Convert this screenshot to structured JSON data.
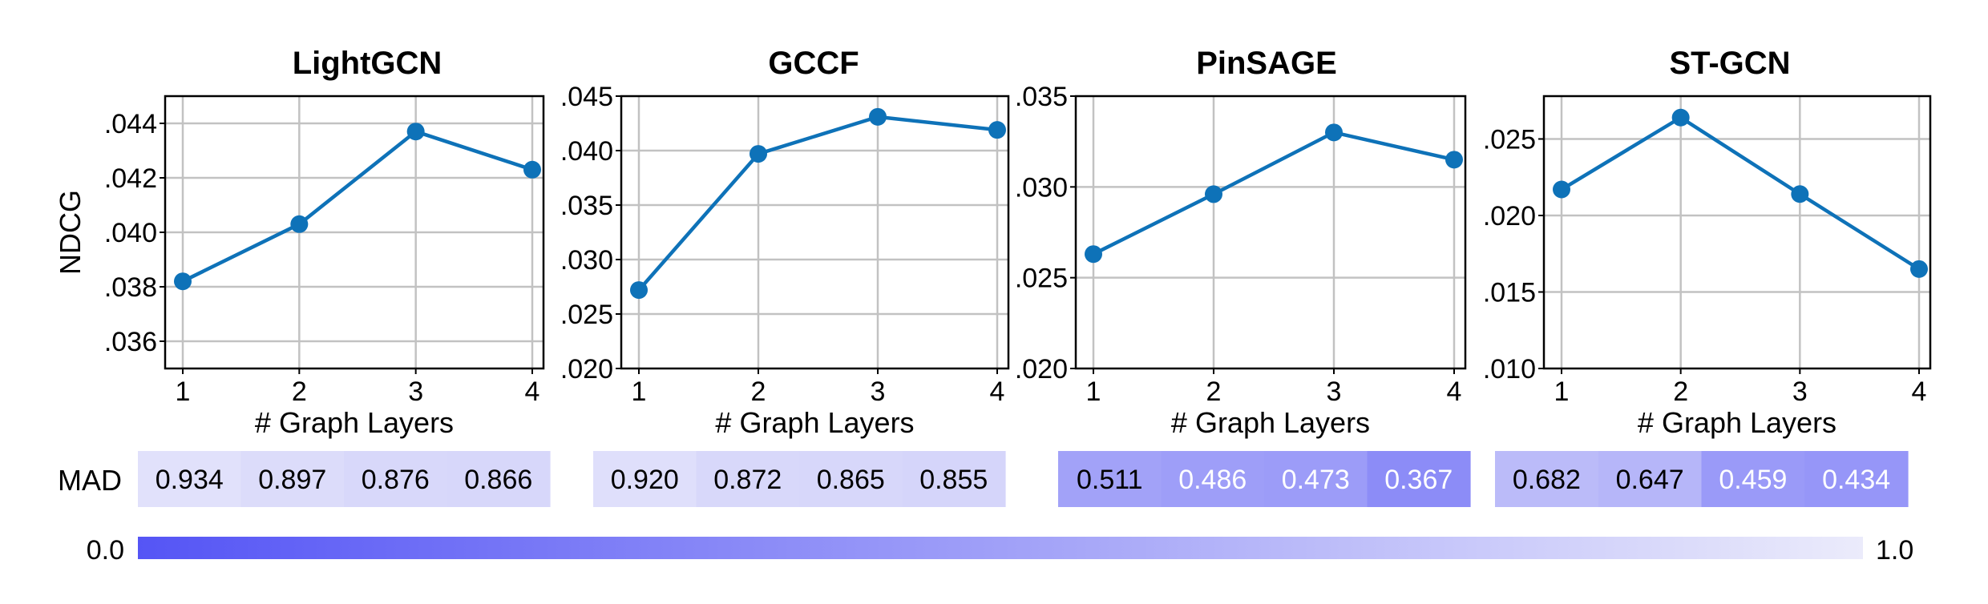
{
  "chart_data": [
    {
      "type": "line",
      "title": "LightGCN",
      "xlabel": "# Graph Layers",
      "ylabel": "NDCG",
      "x": [
        1,
        2,
        3,
        4
      ],
      "x_ticks": [
        "1",
        "2",
        "3",
        "4"
      ],
      "series": [
        {
          "values": [
            0.0382,
            0.0403,
            0.0437,
            0.0423
          ]
        }
      ],
      "ylim": [
        0.035,
        0.045
      ],
      "y_ticks": [
        0.036,
        0.038,
        0.04,
        0.042,
        0.044
      ],
      "y_tick_labels": [
        ".036",
        ".038",
        ".040",
        ".042",
        ".044"
      ],
      "grid": true,
      "mad": {
        "label": "MAD",
        "values": [
          0.934,
          0.897,
          0.876,
          0.866
        ],
        "labels": [
          "0.934",
          "0.897",
          "0.876",
          "0.866"
        ]
      }
    },
    {
      "type": "line",
      "title": "GCCF",
      "xlabel": "# Graph Layers",
      "ylabel": "",
      "x": [
        1,
        2,
        3,
        4
      ],
      "x_ticks": [
        "1",
        "2",
        "3",
        "4"
      ],
      "series": [
        {
          "values": [
            0.0272,
            0.0397,
            0.0431,
            0.0419
          ]
        }
      ],
      "ylim": [
        0.02,
        0.045
      ],
      "y_ticks": [
        0.02,
        0.025,
        0.03,
        0.035,
        0.04,
        0.045
      ],
      "y_tick_labels": [
        ".020",
        ".025",
        ".030",
        ".035",
        ".040",
        ".045"
      ],
      "grid": true,
      "mad": {
        "values": [
          0.92,
          0.872,
          0.865,
          0.855
        ],
        "labels": [
          "0.920",
          "0.872",
          "0.865",
          "0.855"
        ]
      }
    },
    {
      "type": "line",
      "title": "PinSAGE",
      "xlabel": "# Graph Layers",
      "ylabel": "",
      "x": [
        1,
        2,
        3,
        4
      ],
      "x_ticks": [
        "1",
        "2",
        "3",
        "4"
      ],
      "series": [
        {
          "values": [
            0.0263,
            0.0296,
            0.033,
            0.0315
          ]
        }
      ],
      "ylim": [
        0.02,
        0.035
      ],
      "y_ticks": [
        0.02,
        0.025,
        0.03,
        0.035
      ],
      "y_tick_labels": [
        ".020",
        ".025",
        ".030",
        ".035"
      ],
      "grid": true,
      "mad": {
        "values": [
          0.511,
          0.486,
          0.473,
          0.367
        ],
        "labels": [
          "0.511",
          "0.486",
          "0.473",
          "0.367"
        ]
      }
    },
    {
      "type": "line",
      "title": "ST-GCN",
      "xlabel": "# Graph Layers",
      "ylabel": "",
      "x": [
        1,
        2,
        3,
        4
      ],
      "x_ticks": [
        "1",
        "2",
        "3",
        "4"
      ],
      "series": [
        {
          "values": [
            0.0217,
            0.0264,
            0.0214,
            0.0165
          ]
        }
      ],
      "ylim": [
        0.01,
        0.0278
      ],
      "y_ticks": [
        0.01,
        0.015,
        0.02,
        0.025
      ],
      "y_tick_labels": [
        ".010",
        ".015",
        ".020",
        ".025"
      ],
      "grid": true,
      "mad": {
        "values": [
          0.682,
          0.647,
          0.459,
          0.434
        ],
        "labels": [
          "0.682",
          "0.647",
          "0.459",
          "0.434"
        ]
      }
    }
  ],
  "colorbar": {
    "min_label": "0.0",
    "max_label": "1.0",
    "min": 0.0,
    "max": 1.0
  },
  "colors": {
    "line": "#0e72b8",
    "grid": "#c2c2c2",
    "scale_low": "#5555f5",
    "scale_high": "#ebebfb"
  }
}
